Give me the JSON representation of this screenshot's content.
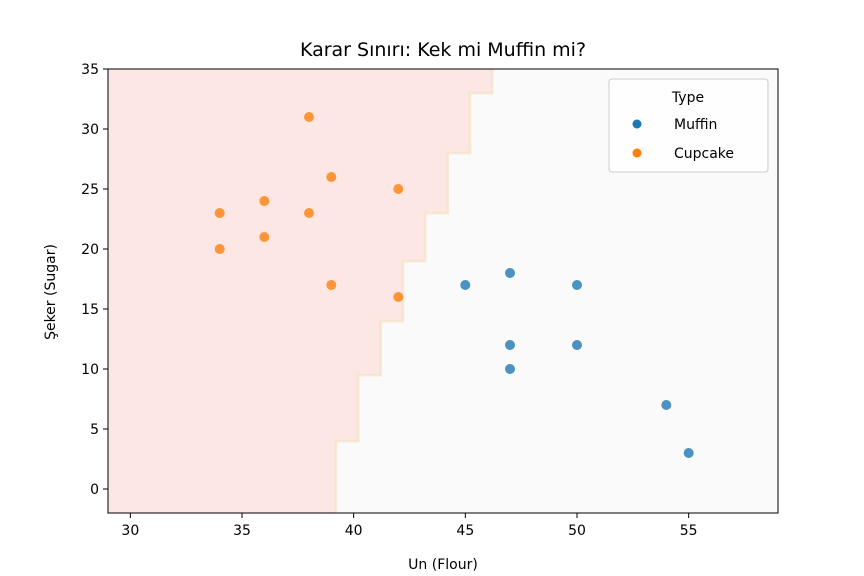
{
  "chart_data": {
    "type": "scatter",
    "title": "Karar Sınırı: Kek mi Muffin mi?",
    "xlabel": "Un (Flour)",
    "ylabel": "Şeker (Sugar)",
    "xlim": [
      29,
      59
    ],
    "ylim": [
      -2,
      35
    ],
    "xticks": [
      30,
      35,
      40,
      45,
      50,
      55
    ],
    "yticks": [
      0,
      5,
      10,
      15,
      20,
      25,
      30,
      35
    ],
    "grid": false,
    "legend": {
      "title": "Type",
      "position": "upper-right"
    },
    "decision_region": {
      "cupcake_color": "#fde7e4",
      "muffin_color": "#fafafa",
      "boundary": [
        {
          "y": -2,
          "x": 39.2
        },
        {
          "y": 4,
          "x": 39.2
        },
        {
          "y": 4,
          "x": 40.2
        },
        {
          "y": 9.5,
          "x": 40.2
        },
        {
          "y": 9.5,
          "x": 41.2
        },
        {
          "y": 14,
          "x": 41.2
        },
        {
          "y": 14,
          "x": 42.2
        },
        {
          "y": 19,
          "x": 42.2
        },
        {
          "y": 19,
          "x": 43.2
        },
        {
          "y": 23,
          "x": 43.2
        },
        {
          "y": 23,
          "x": 44.2
        },
        {
          "y": 28,
          "x": 44.2
        },
        {
          "y": 28,
          "x": 45.2
        },
        {
          "y": 33,
          "x": 45.2
        },
        {
          "y": 33,
          "x": 46.2
        },
        {
          "y": 35,
          "x": 46.2
        }
      ]
    },
    "series": [
      {
        "name": "Muffin",
        "color": "#1f77b4",
        "points": [
          {
            "x": 45,
            "y": 17
          },
          {
            "x": 47,
            "y": 18
          },
          {
            "x": 50,
            "y": 17
          },
          {
            "x": 47,
            "y": 12
          },
          {
            "x": 50,
            "y": 12
          },
          {
            "x": 47,
            "y": 10
          },
          {
            "x": 54,
            "y": 7
          },
          {
            "x": 55,
            "y": 3
          }
        ]
      },
      {
        "name": "Cupcake",
        "color": "#ff7f0e",
        "points": [
          {
            "x": 38,
            "y": 31
          },
          {
            "x": 39,
            "y": 26
          },
          {
            "x": 42,
            "y": 25
          },
          {
            "x": 36,
            "y": 24
          },
          {
            "x": 34,
            "y": 23
          },
          {
            "x": 38,
            "y": 23
          },
          {
            "x": 36,
            "y": 21
          },
          {
            "x": 34,
            "y": 20
          },
          {
            "x": 39,
            "y": 17
          },
          {
            "x": 42,
            "y": 16
          }
        ]
      }
    ]
  }
}
